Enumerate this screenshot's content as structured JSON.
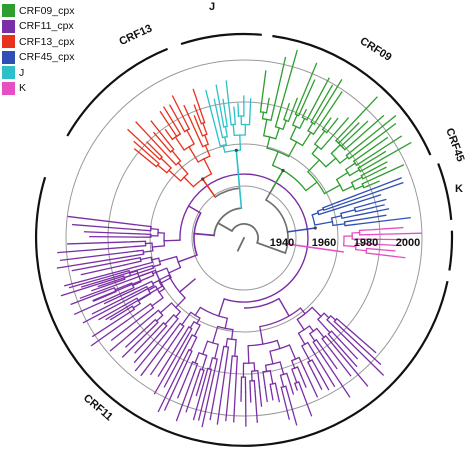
{
  "legend": [
    {
      "label": "CRF09_cpx",
      "color": "#2e9e2e"
    },
    {
      "label": "CRF11_cpx",
      "color": "#7b2fa6"
    },
    {
      "label": "CRF13_cpx",
      "color": "#e8321e"
    },
    {
      "label": "CRF45_cpx",
      "color": "#2f4fb5"
    },
    {
      "label": "J",
      "color": "#2cc1c9"
    },
    {
      "label": "K",
      "color": "#e64fc1"
    }
  ],
  "clade_labels": {
    "j": "J",
    "crf13": "CRF13",
    "crf09": "CRF09",
    "crf45": "CRF45",
    "k": "K",
    "crf11": "CRF11"
  },
  "time_scale": [
    "1940",
    "1960",
    "1980",
    "2000"
  ],
  "colors": {
    "backbone": "#6e6e6e",
    "ring": "#9a9a9a",
    "clade_bar": "#111111",
    "node_marker": "#444444"
  }
}
